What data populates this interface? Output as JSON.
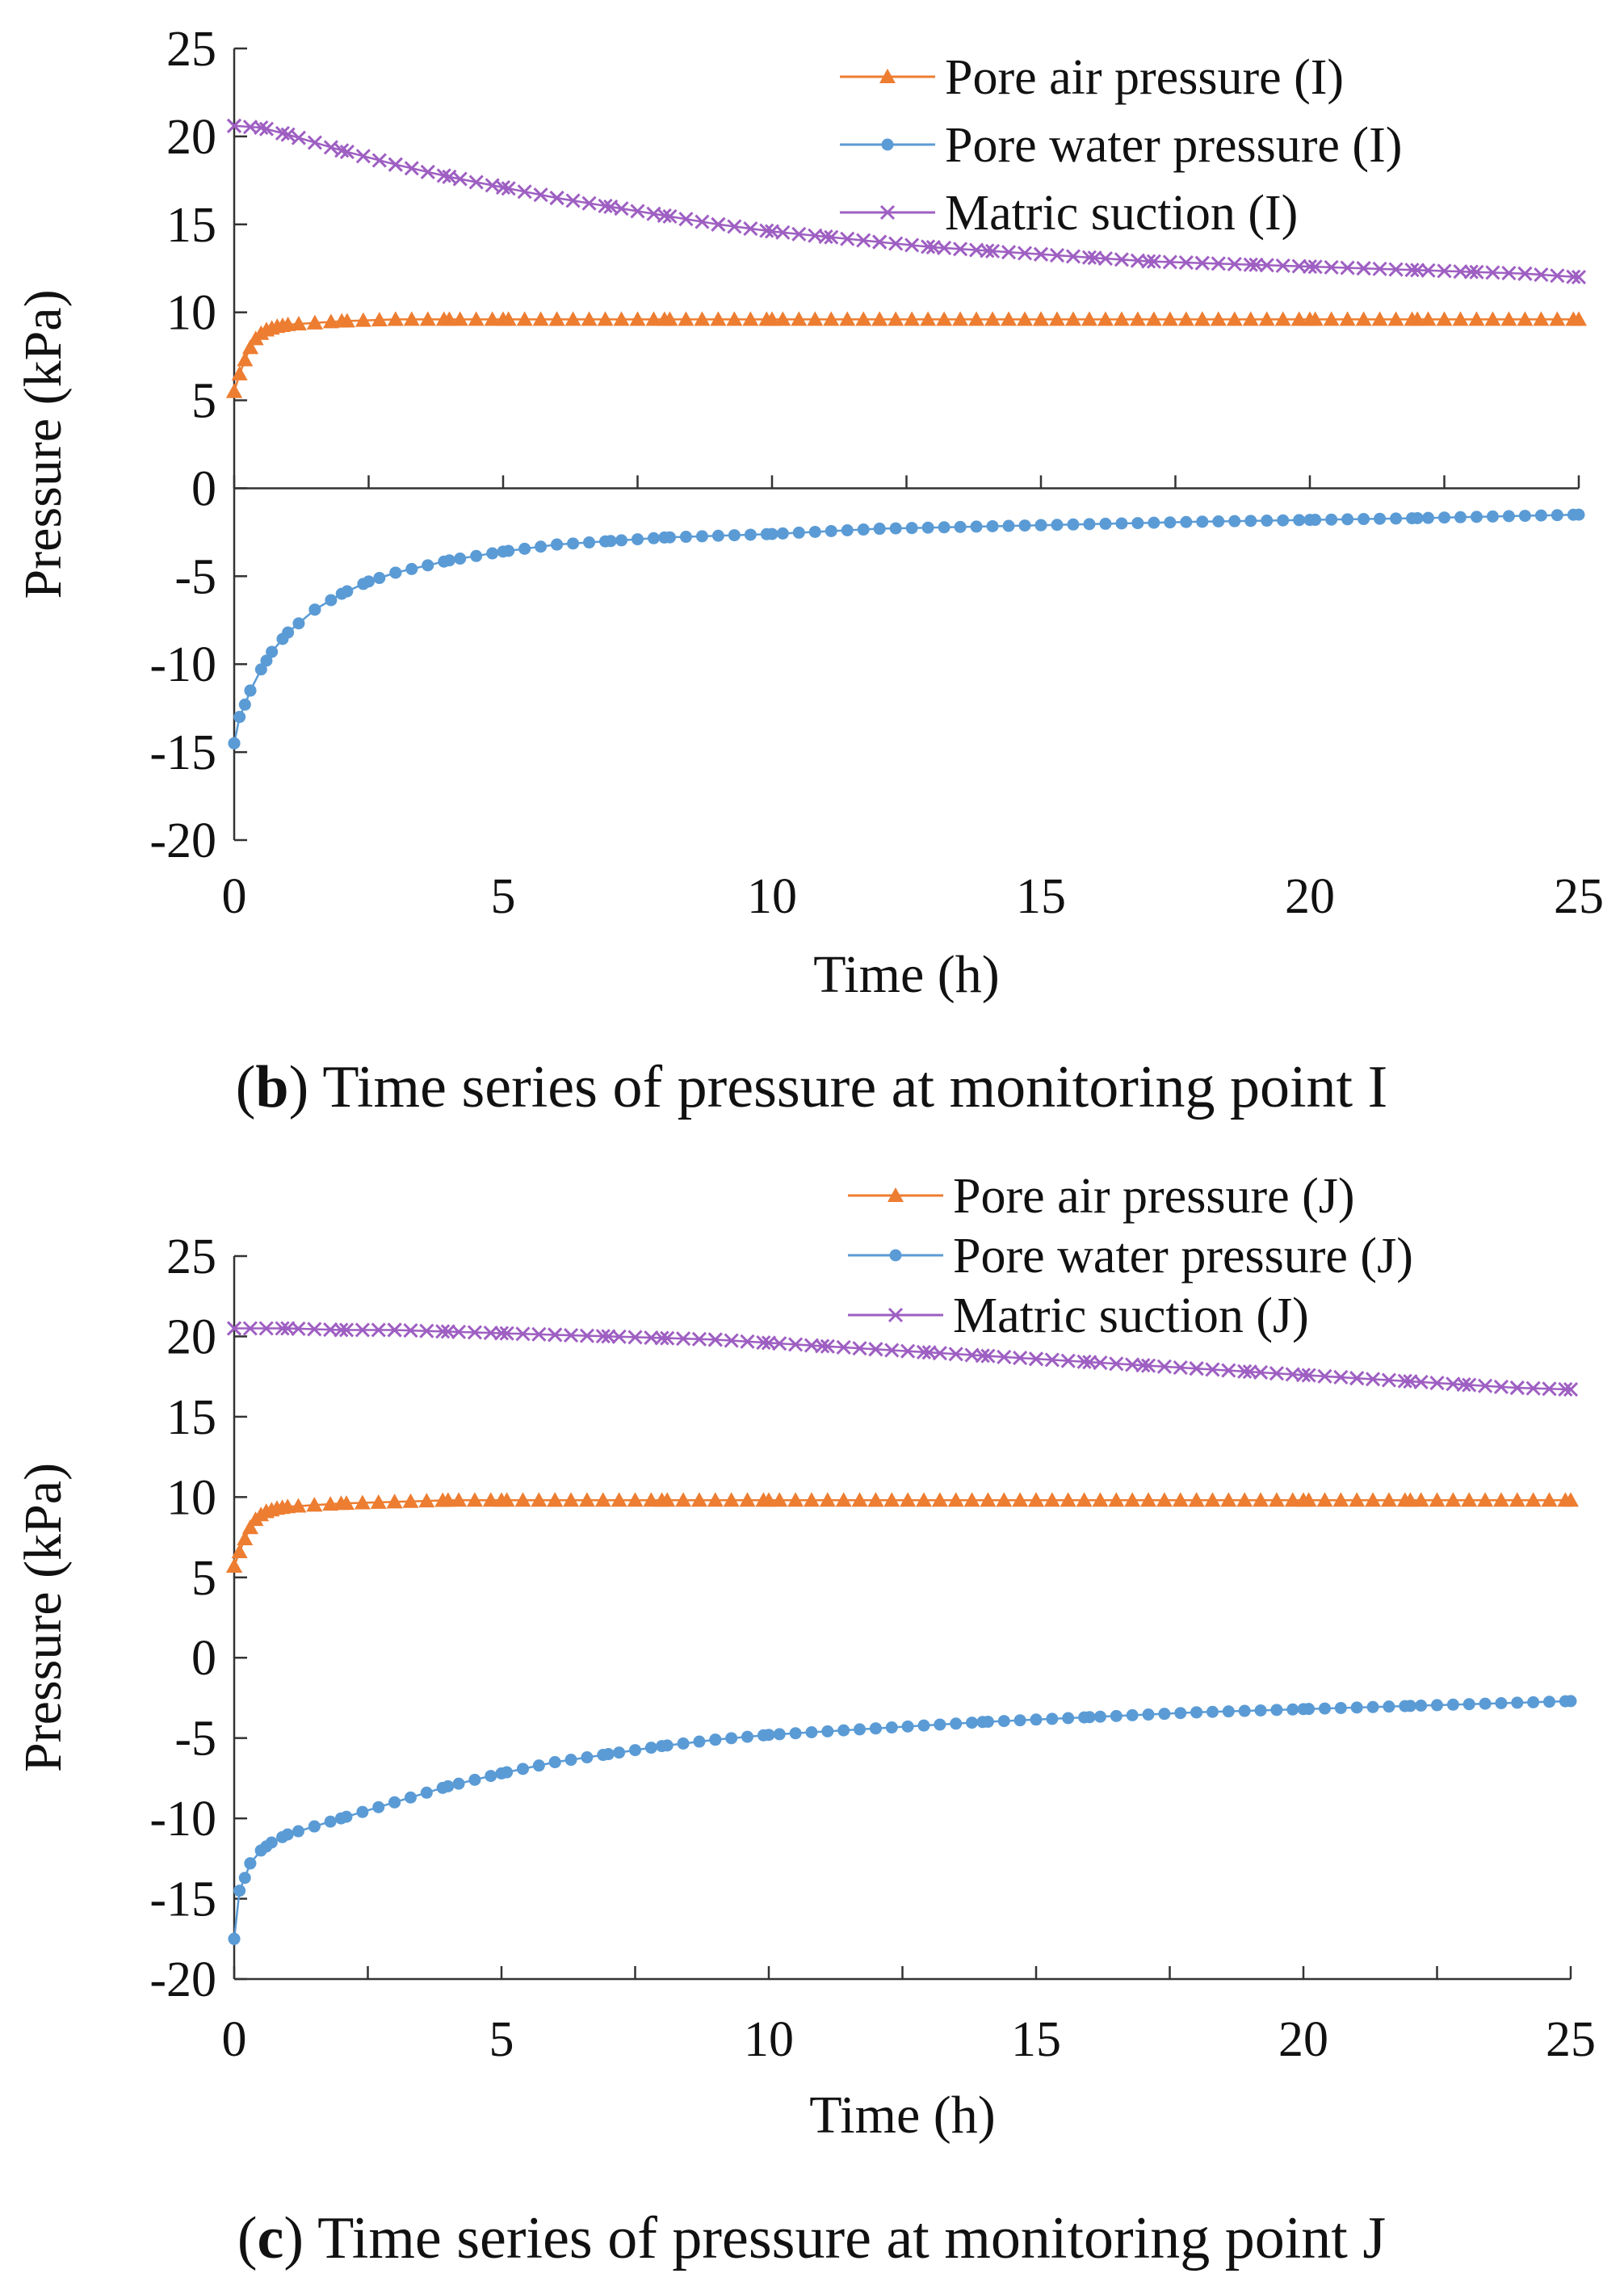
{
  "figure": {
    "colors": {
      "pore_air": "#ED7D31",
      "pore_water": "#5B9BD5",
      "matric_suction": "#9E5FC2",
      "axis": "#333333"
    }
  },
  "chart_data": [
    {
      "type": "line",
      "panel_letter": "b",
      "caption_open": "(",
      "caption_close": ")",
      "caption_text": " Time series of pressure at monitoring point I",
      "xlabel": "Time (h)",
      "ylabel": "Pressure (kPa)",
      "xlim": [
        0,
        25
      ],
      "ylim": [
        -20,
        25
      ],
      "x_ticks": [
        "0",
        "5",
        "10",
        "15",
        "20",
        "25"
      ],
      "y_ticks": [
        "25",
        "20",
        "15",
        "10",
        "5",
        "0",
        "-5",
        "-10",
        "-15",
        "-20"
      ],
      "legend_position": "top-right",
      "grid": false,
      "x_axis_at_y": 0,
      "series": [
        {
          "name": "Pore air pressure (I)",
          "marker": "triangle",
          "color": "#ED7D31",
          "x": [
            0,
            0.1,
            0.2,
            0.3,
            0.4,
            0.5,
            0.6,
            0.7,
            0.8,
            1.0,
            1.5,
            2,
            3,
            4,
            5,
            6,
            8,
            10,
            12,
            15,
            18,
            20,
            22,
            25
          ],
          "y": [
            5.5,
            6.5,
            7.3,
            8.0,
            8.5,
            8.8,
            9.0,
            9.1,
            9.2,
            9.3,
            9.4,
            9.5,
            9.6,
            9.6,
            9.6,
            9.6,
            9.6,
            9.6,
            9.6,
            9.6,
            9.6,
            9.6,
            9.6,
            9.6
          ]
        },
        {
          "name": "Pore water pressure (I)",
          "marker": "circle",
          "color": "#5B9BD5",
          "x": [
            0,
            0.1,
            0.2,
            0.3,
            0.5,
            0.7,
            1.0,
            1.5,
            2,
            2.5,
            3,
            4,
            5,
            6,
            7,
            8,
            10,
            12,
            15,
            18,
            20,
            22,
            25
          ],
          "y": [
            -14.5,
            -13.0,
            -12.3,
            -11.5,
            -10.3,
            -9.3,
            -8.2,
            -6.9,
            -6.0,
            -5.3,
            -4.8,
            -4.1,
            -3.6,
            -3.2,
            -3.0,
            -2.8,
            -2.6,
            -2.3,
            -2.1,
            -1.9,
            -1.8,
            -1.7,
            -1.5
          ]
        },
        {
          "name": "Matric suction (I)",
          "marker": "x",
          "color": "#9E5FC2",
          "x": [
            0,
            0.5,
            1,
            2,
            3,
            4,
            5,
            6,
            7,
            8,
            9,
            10,
            11,
            12,
            13,
            14,
            15,
            16,
            17,
            18,
            19,
            20,
            21,
            22,
            23,
            24,
            25
          ],
          "y": [
            20.6,
            20.5,
            20.1,
            19.2,
            18.4,
            17.7,
            17.1,
            16.5,
            16.0,
            15.5,
            15.0,
            14.6,
            14.3,
            14.0,
            13.7,
            13.5,
            13.3,
            13.1,
            12.9,
            12.8,
            12.7,
            12.6,
            12.5,
            12.4,
            12.3,
            12.2,
            12.0
          ]
        }
      ]
    },
    {
      "type": "line",
      "panel_letter": "c",
      "caption_open": "(",
      "caption_close": ")",
      "caption_text": " Time series of pressure at monitoring point J",
      "xlabel": "Time (h)",
      "ylabel": "Pressure (kPa)",
      "xlim": [
        0,
        25
      ],
      "ylim": [
        -20,
        25
      ],
      "x_ticks": [
        "0",
        "5",
        "10",
        "15",
        "20",
        "25"
      ],
      "y_ticks": [
        "25",
        "20",
        "15",
        "10",
        "5",
        "0",
        "-5",
        "-10",
        "-15",
        "-20"
      ],
      "legend_position": "top-right",
      "grid": false,
      "x_axis_at_y": -20,
      "series": [
        {
          "name": "Pore air pressure (J)",
          "marker": "triangle",
          "color": "#ED7D31",
          "x": [
            0,
            0.1,
            0.2,
            0.3,
            0.4,
            0.5,
            0.6,
            0.7,
            0.8,
            1.0,
            1.5,
            2,
            3,
            4,
            5,
            6,
            8,
            10,
            12,
            15,
            18,
            20,
            22,
            25
          ],
          "y": [
            5.7,
            6.6,
            7.4,
            8.1,
            8.6,
            8.9,
            9.1,
            9.2,
            9.3,
            9.4,
            9.5,
            9.6,
            9.7,
            9.8,
            9.8,
            9.8,
            9.8,
            9.8,
            9.8,
            9.8,
            9.8,
            9.8,
            9.8,
            9.8
          ]
        },
        {
          "name": "Pore water pressure (J)",
          "marker": "circle",
          "color": "#5B9BD5",
          "x": [
            0,
            0.1,
            0.2,
            0.3,
            0.5,
            0.7,
            1.0,
            1.5,
            2,
            3,
            4,
            5,
            6,
            7,
            8,
            9,
            10,
            12,
            14,
            16,
            18,
            20,
            22,
            25
          ],
          "y": [
            -17.5,
            -14.5,
            -13.7,
            -12.8,
            -12.0,
            -11.5,
            -11.0,
            -10.5,
            -10.0,
            -9.0,
            -8.0,
            -7.2,
            -6.5,
            -6.0,
            -5.5,
            -5.1,
            -4.8,
            -4.4,
            -4.0,
            -3.7,
            -3.4,
            -3.2,
            -3.0,
            -2.7
          ]
        },
        {
          "name": "Matric suction (J)",
          "marker": "x",
          "color": "#9E5FC2",
          "x": [
            0,
            1,
            2,
            3,
            4,
            5,
            6,
            7,
            8,
            9,
            10,
            11,
            12,
            13,
            14,
            15,
            16,
            17,
            18,
            19,
            20,
            21,
            22,
            23,
            24,
            25
          ],
          "y": [
            20.5,
            20.5,
            20.4,
            20.4,
            20.3,
            20.2,
            20.1,
            20.0,
            19.9,
            19.8,
            19.6,
            19.4,
            19.2,
            19.0,
            18.8,
            18.6,
            18.4,
            18.2,
            18.0,
            17.8,
            17.6,
            17.4,
            17.2,
            17.0,
            16.8,
            16.7
          ]
        }
      ]
    }
  ]
}
